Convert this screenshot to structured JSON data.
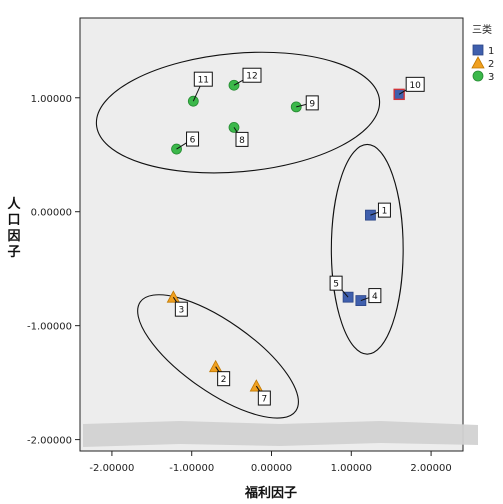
{
  "chart_data": {
    "type": "scatter",
    "xlabel": "福利因子",
    "ylabel": "人口因子",
    "xlim": [
      -2.4,
      2.4
    ],
    "ylim": [
      -2.1,
      1.7
    ],
    "xticks": [
      -2.0,
      -1.0,
      0.0,
      1.0,
      2.0
    ],
    "xtick_labels": [
      "-2.00000",
      "-1.00000",
      "0.00000",
      "1.00000",
      "2.00000"
    ],
    "yticks": [
      -2.0,
      -1.0,
      0.0,
      1.0
    ],
    "ytick_labels": [
      "-2.00000",
      "-1.00000",
      "0.00000",
      "1.00000"
    ],
    "grid": false,
    "background": "#ededed",
    "legend": {
      "title": "三类",
      "placement": "top-right",
      "entries": [
        {
          "label": "1",
          "marker": "square",
          "color": "#3f5fad"
        },
        {
          "label": "2",
          "marker": "triangle",
          "color": "#f0a020"
        },
        {
          "label": "3",
          "marker": "circle",
          "color": "#3bb84a"
        }
      ]
    },
    "series": [
      {
        "name": "1",
        "marker": "square",
        "color": "#3f5fad",
        "points": [
          {
            "label": "1",
            "x": 1.24,
            "y": -0.03
          },
          {
            "label": "4",
            "x": 1.12,
            "y": -0.78
          },
          {
            "label": "5",
            "x": 0.96,
            "y": -0.75
          },
          {
            "label": "10",
            "x": 1.6,
            "y": 1.03
          }
        ]
      },
      {
        "name": "2",
        "marker": "triangle",
        "color": "#f0a020",
        "points": [
          {
            "label": "3",
            "x": -1.23,
            "y": -0.75
          },
          {
            "label": "2",
            "x": -0.7,
            "y": -1.36
          },
          {
            "label": "7",
            "x": -0.19,
            "y": -1.53
          }
        ]
      },
      {
        "name": "3",
        "marker": "circle",
        "color": "#3bb84a",
        "points": [
          {
            "label": "6",
            "x": -1.19,
            "y": 0.55
          },
          {
            "label": "11",
            "x": -0.98,
            "y": 0.97
          },
          {
            "label": "12",
            "x": -0.47,
            "y": 1.11
          },
          {
            "label": "8",
            "x": -0.47,
            "y": 0.74
          },
          {
            "label": "9",
            "x": 0.31,
            "y": 0.92
          }
        ]
      }
    ],
    "annotations": [
      {
        "label": "1",
        "dx": 14,
        "dy": -5
      },
      {
        "label": "4",
        "dx": 14,
        "dy": -5
      },
      {
        "label": "5",
        "dx": -12,
        "dy": -14
      },
      {
        "label": "10",
        "dx": 16,
        "dy": -10
      },
      {
        "label": "3",
        "dx": 8,
        "dy": 12
      },
      {
        "label": "2",
        "dx": 8,
        "dy": 12
      },
      {
        "label": "7",
        "dx": 8,
        "dy": 12
      },
      {
        "label": "6",
        "dx": 16,
        "dy": -10
      },
      {
        "label": "11",
        "dx": 10,
        "dy": -22
      },
      {
        "label": "12",
        "dx": 18,
        "dy": -10
      },
      {
        "label": "8",
        "dx": 8,
        "dy": 12
      },
      {
        "label": "9",
        "dx": 16,
        "dy": -4
      }
    ],
    "cluster_outlines": [
      {
        "cluster": "3",
        "cx": -0.42,
        "cy": 0.87,
        "rx": 1.78,
        "ry": 0.52,
        "rotate": -5
      },
      {
        "cluster": "1",
        "cx": 1.2,
        "cy": -0.33,
        "rx": 0.45,
        "ry": 0.92,
        "rotate": 0
      },
      {
        "cluster": "2",
        "cx": -0.67,
        "cy": -1.27,
        "rx": 1.19,
        "ry": 0.31,
        "rotate": 35
      }
    ]
  }
}
